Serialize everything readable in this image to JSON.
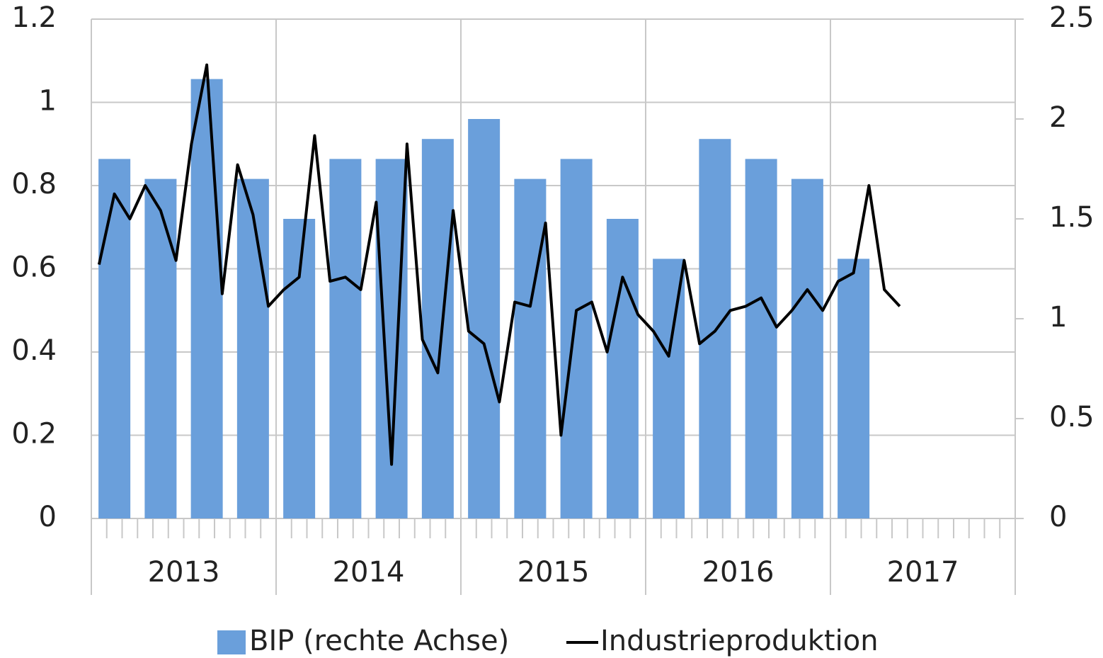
{
  "chart_data": {
    "type": "bar-line",
    "years": [
      "2013",
      "2014",
      "2015",
      "2016",
      "2017"
    ],
    "series": [
      {
        "name": "BIP (rechte Achse)",
        "type": "bar",
        "axis": "y2",
        "color": "#6a9fdb",
        "values": [
          1.8,
          1.7,
          2.2,
          1.7,
          1.5,
          1.8,
          1.8,
          1.9,
          2.0,
          1.7,
          1.8,
          1.5,
          1.3,
          1.9,
          1.8,
          1.7,
          1.3,
          null,
          null,
          null
        ]
      },
      {
        "name": "Industrieproduktion",
        "type": "line",
        "axis": "y",
        "color": "#000000",
        "values": [
          0.61,
          0.78,
          0.72,
          0.8,
          0.74,
          0.62,
          0.9,
          1.09,
          0.54,
          0.85,
          0.73,
          0.51,
          0.55,
          0.58,
          0.92,
          0.57,
          0.58,
          0.55,
          0.76,
          0.13,
          0.9,
          0.43,
          0.35,
          0.74,
          0.45,
          0.42,
          0.28,
          0.52,
          0.51,
          0.71,
          0.2,
          0.5,
          0.52,
          0.4,
          0.58,
          0.49,
          0.45,
          0.39,
          0.62,
          0.42,
          0.45,
          0.5,
          0.51,
          0.53,
          0.46,
          0.5,
          0.55,
          0.5,
          0.57,
          0.59,
          0.8,
          0.55,
          0.51,
          null,
          null,
          null,
          null,
          null,
          null,
          null
        ]
      }
    ],
    "ylim": [
      0,
      1.2
    ],
    "yticks": [
      0,
      0.2,
      0.4,
      0.6,
      0.8,
      1,
      1.2
    ],
    "y2lim": [
      0,
      2.5
    ],
    "y2ticks": [
      0,
      0.5,
      1,
      1.5,
      2,
      2.5
    ],
    "grid": true,
    "legend": "bottom"
  }
}
